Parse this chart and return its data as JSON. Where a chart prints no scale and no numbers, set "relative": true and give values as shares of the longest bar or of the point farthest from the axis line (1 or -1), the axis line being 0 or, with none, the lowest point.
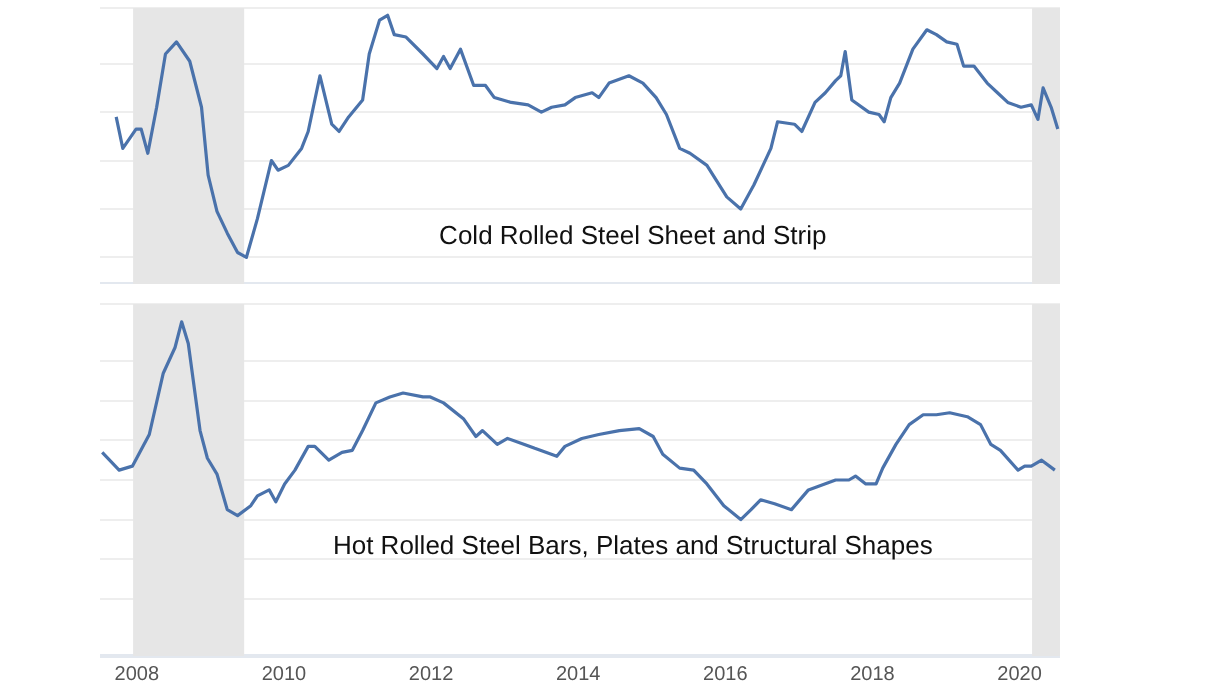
{
  "chart_data": [
    {
      "type": "line",
      "relative": true,
      "annotations": [
        "Cold Rolled Steel Sheet and Strip"
      ],
      "xlim": [
        2007.5,
        2020.55
      ],
      "xticks": [
        2008,
        2010,
        2012,
        2014,
        2016,
        2018,
        2020
      ],
      "tick_labels": false,
      "grid": "y",
      "legend": false,
      "marker": "none",
      "bands": [
        {
          "axis": "x",
          "from": 2007.95,
          "to": 2009.46,
          "color": "#e6e6e6"
        },
        {
          "axis": "x",
          "from": 2020.17,
          "to": 2020.55,
          "color": "#e6e6e6"
        }
      ],
      "series": [
        {
          "color": "#4a72ab",
          "x": [
            2007.72,
            2007.81,
            2007.99,
            2008.06,
            2008.15,
            2008.27,
            2008.39,
            2008.54,
            2008.72,
            2008.88,
            2008.97,
            2009.09,
            2009.23,
            2009.37,
            2009.49,
            2009.64,
            2009.83,
            2009.92,
            2010.06,
            2010.24,
            2010.33,
            2010.49,
            2010.65,
            2010.75,
            2010.88,
            2011.07,
            2011.16,
            2011.3,
            2011.41,
            2011.5,
            2011.66,
            2011.89,
            2012.08,
            2012.17,
            2012.26,
            2012.4,
            2012.58,
            2012.74,
            2012.86,
            2013.09,
            2013.32,
            2013.5,
            2013.64,
            2013.82,
            2013.96,
            2014.19,
            2014.28,
            2014.42,
            2014.69,
            2014.88,
            2015.06,
            2015.2,
            2015.38,
            2015.52,
            2015.75,
            2016.02,
            2016.21,
            2016.39,
            2016.62,
            2016.71,
            2016.94,
            2017.04,
            2017.22,
            2017.36,
            2017.5,
            2017.57,
            2017.63,
            2017.72,
            2017.95,
            2018.09,
            2018.16,
            2018.25,
            2018.37,
            2018.55,
            2018.74,
            2018.87,
            2019.01,
            2019.15,
            2019.24,
            2019.38,
            2019.56,
            2019.7,
            2019.84,
            2020.02,
            2020.16,
            2020.25,
            2020.32,
            2020.43,
            2020.52
          ],
          "values": [
            0.58,
            0.45,
            0.53,
            0.53,
            0.43,
            0.62,
            0.84,
            0.89,
            0.81,
            0.62,
            0.34,
            0.19,
            0.1,
            0.02,
            0,
            0.16,
            0.4,
            0.36,
            0.38,
            0.45,
            0.52,
            0.75,
            0.55,
            0.52,
            0.58,
            0.65,
            0.84,
            0.98,
            1,
            0.92,
            0.91,
            0.84,
            0.78,
            0.83,
            0.78,
            0.86,
            0.71,
            0.71,
            0.66,
            0.64,
            0.63,
            0.6,
            0.62,
            0.63,
            0.66,
            0.68,
            0.66,
            0.72,
            0.75,
            0.72,
            0.66,
            0.59,
            0.45,
            0.43,
            0.38,
            0.25,
            0.2,
            0.3,
            0.45,
            0.56,
            0.55,
            0.52,
            0.64,
            0.68,
            0.73,
            0.75,
            0.85,
            0.65,
            0.6,
            0.59,
            0.56,
            0.66,
            0.72,
            0.86,
            0.94,
            0.92,
            0.89,
            0.88,
            0.79,
            0.79,
            0.72,
            0.68,
            0.64,
            0.62,
            0.63,
            0.57,
            0.7,
            0.62,
            0.53
          ]
        }
      ]
    },
    {
      "type": "line",
      "relative": true,
      "annotations": [
        "Hot Rolled Steel Bars, Plates and Structural Shapes"
      ],
      "xlim": [
        2007.5,
        2020.55
      ],
      "xticks": [
        2008,
        2010,
        2012,
        2014,
        2016,
        2018,
        2020
      ],
      "tick_labels": "x",
      "grid": "y",
      "legend": false,
      "marker": "none",
      "bands": [
        {
          "axis": "x",
          "from": 2007.95,
          "to": 2009.46,
          "color": "#e6e6e6"
        },
        {
          "axis": "x",
          "from": 2020.17,
          "to": 2020.55,
          "color": "#e6e6e6"
        }
      ],
      "series": [
        {
          "color": "#4a72ab",
          "x": [
            2007.53,
            2007.76,
            2007.94,
            2008.17,
            2008.36,
            2008.52,
            2008.61,
            2008.7,
            2008.86,
            2008.96,
            2009.09,
            2009.23,
            2009.37,
            2009.55,
            2009.64,
            2009.8,
            2009.89,
            2010.01,
            2010.15,
            2010.33,
            2010.42,
            2010.61,
            2010.79,
            2010.93,
            2011.07,
            2011.25,
            2011.44,
            2011.62,
            2011.89,
            2011.99,
            2012.17,
            2012.44,
            2012.61,
            2012.7,
            2012.9,
            2013.04,
            2013.27,
            2013.41,
            2013.71,
            2013.82,
            2014.05,
            2014.28,
            2014.56,
            2014.83,
            2015.02,
            2015.15,
            2015.38,
            2015.57,
            2015.75,
            2015.98,
            2016.21,
            2016.35,
            2016.48,
            2016.67,
            2016.9,
            2017.13,
            2017.5,
            2017.68,
            2017.77,
            2017.91,
            2018.05,
            2018.14,
            2018.32,
            2018.5,
            2018.69,
            2018.87,
            2019.05,
            2019.29,
            2019.47,
            2019.61,
            2019.74,
            2019.98,
            2020.07,
            2020.16,
            2020.3,
            2020.48
          ],
          "values": [
            0.34,
            0.25,
            0.27,
            0.43,
            0.74,
            0.87,
            1,
            0.89,
            0.45,
            0.31,
            0.23,
            0.05,
            0.02,
            0.07,
            0.12,
            0.15,
            0.09,
            0.18,
            0.25,
            0.37,
            0.37,
            0.3,
            0.34,
            0.35,
            0.45,
            0.59,
            0.62,
            0.64,
            0.62,
            0.62,
            0.59,
            0.51,
            0.42,
            0.45,
            0.38,
            0.41,
            0.38,
            0.36,
            0.32,
            0.37,
            0.41,
            0.43,
            0.45,
            0.46,
            0.42,
            0.33,
            0.26,
            0.25,
            0.18,
            0.07,
            0,
            0.05,
            0.1,
            0.08,
            0.05,
            0.15,
            0.2,
            0.2,
            0.22,
            0.18,
            0.18,
            0.26,
            0.38,
            0.48,
            0.53,
            0.53,
            0.54,
            0.52,
            0.48,
            0.38,
            0.35,
            0.25,
            0.27,
            0.27,
            0.3,
            0.25
          ]
        }
      ]
    }
  ]
}
